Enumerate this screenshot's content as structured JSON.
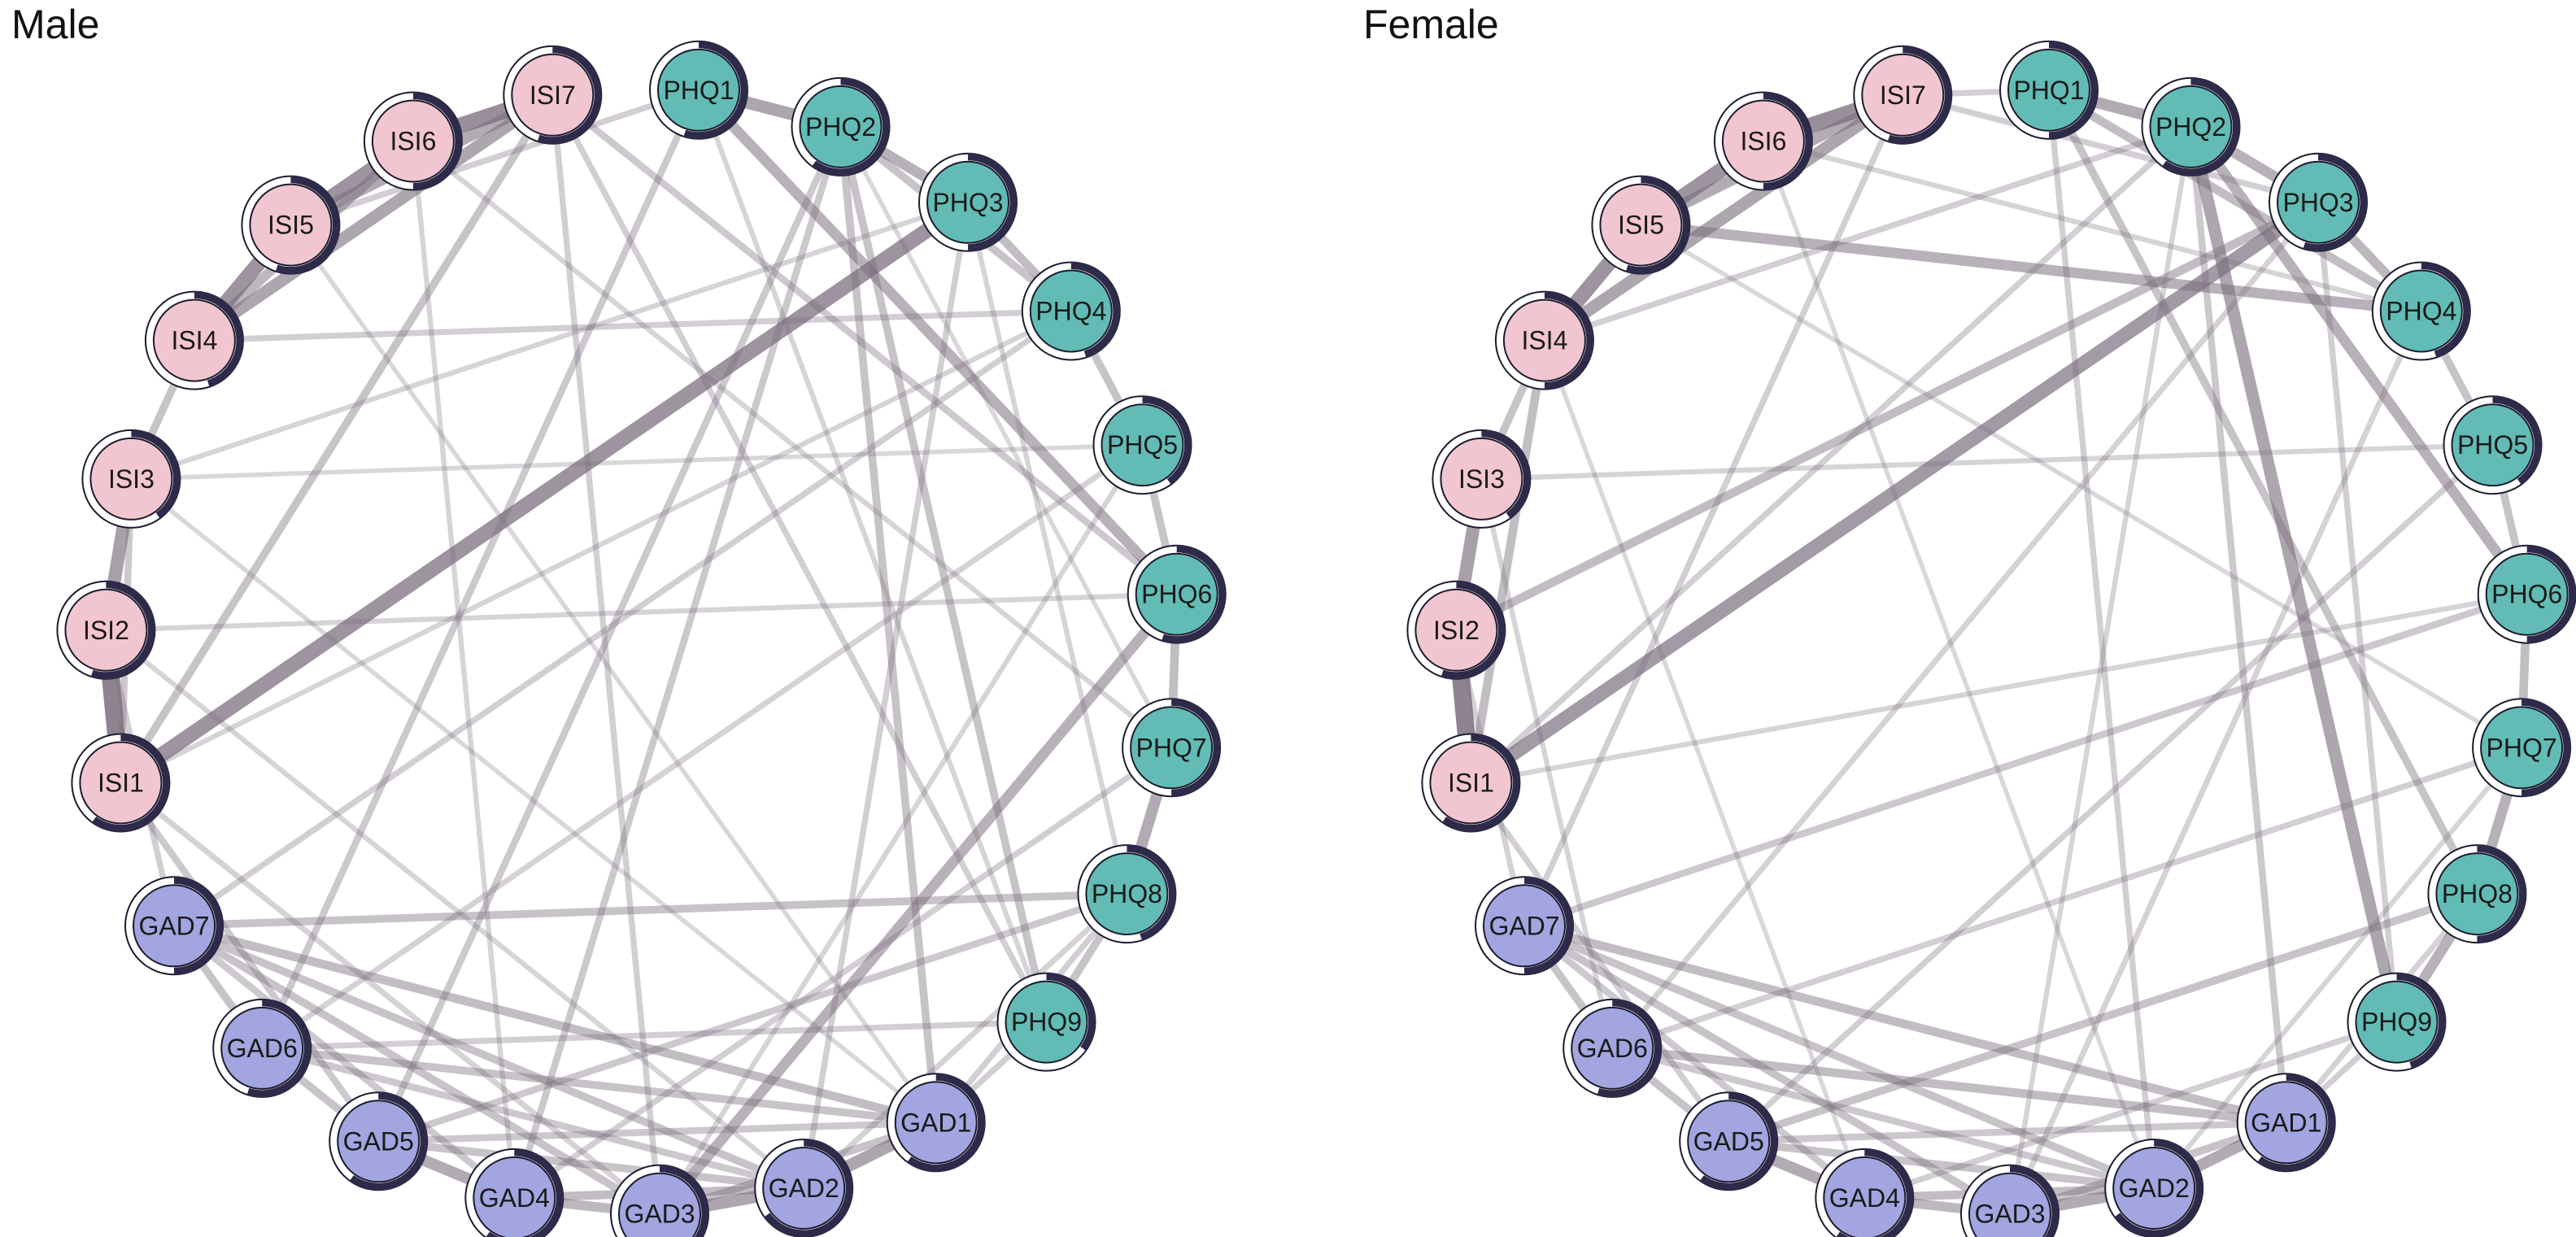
{
  "panels": [
    {
      "id": "male",
      "title": "Male",
      "nodes": [
        {
          "label": "PHQ1",
          "group": "PHQ"
        },
        {
          "label": "PHQ2",
          "group": "PHQ"
        },
        {
          "label": "PHQ3",
          "group": "PHQ"
        },
        {
          "label": "PHQ4",
          "group": "PHQ"
        },
        {
          "label": "PHQ5",
          "group": "PHQ"
        },
        {
          "label": "PHQ6",
          "group": "PHQ"
        },
        {
          "label": "PHQ7",
          "group": "PHQ"
        },
        {
          "label": "PHQ8",
          "group": "PHQ"
        },
        {
          "label": "PHQ9",
          "group": "PHQ"
        },
        {
          "label": "GAD1",
          "group": "GAD"
        },
        {
          "label": "GAD2",
          "group": "GAD"
        },
        {
          "label": "GAD3",
          "group": "GAD"
        },
        {
          "label": "GAD4",
          "group": "GAD"
        },
        {
          "label": "GAD5",
          "group": "GAD"
        },
        {
          "label": "GAD6",
          "group": "GAD"
        },
        {
          "label": "GAD7",
          "group": "GAD"
        },
        {
          "label": "ISI1",
          "group": "ISI"
        },
        {
          "label": "ISI2",
          "group": "ISI"
        },
        {
          "label": "ISI3",
          "group": "ISI"
        },
        {
          "label": "ISI4",
          "group": "ISI"
        },
        {
          "label": "ISI5",
          "group": "ISI"
        },
        {
          "label": "ISI6",
          "group": "ISI"
        },
        {
          "label": "ISI7",
          "group": "ISI"
        }
      ],
      "edges": [
        {
          "from": "ISI1",
          "to": "ISI2",
          "weight": 0.85
        },
        {
          "from": "ISI2",
          "to": "ISI3",
          "weight": 0.6
        },
        {
          "from": "ISI4",
          "to": "ISI5",
          "weight": 0.7
        },
        {
          "from": "ISI5",
          "to": "ISI6",
          "weight": 0.7
        },
        {
          "from": "ISI6",
          "to": "ISI7",
          "weight": 0.75
        },
        {
          "from": "ISI4",
          "to": "ISI7",
          "weight": 0.55
        },
        {
          "from": "ISI5",
          "to": "ISI7",
          "weight": 0.5
        },
        {
          "from": "ISI4",
          "to": "ISI6",
          "weight": 0.4
        },
        {
          "from": "ISI3",
          "to": "ISI4",
          "weight": 0.3
        },
        {
          "from": "ISI1",
          "to": "ISI3",
          "weight": 0.25
        },
        {
          "from": "ISI1",
          "to": "PHQ3",
          "weight": 0.7
        },
        {
          "from": "ISI1",
          "to": "ISI7",
          "weight": 0.3
        },
        {
          "from": "PHQ1",
          "to": "PHQ2",
          "weight": 0.55
        },
        {
          "from": "PHQ2",
          "to": "PHQ3",
          "weight": 0.45
        },
        {
          "from": "PHQ3",
          "to": "PHQ4",
          "weight": 0.35
        },
        {
          "from": "PHQ4",
          "to": "PHQ5",
          "weight": 0.3
        },
        {
          "from": "PHQ5",
          "to": "PHQ6",
          "weight": 0.3
        },
        {
          "from": "PHQ6",
          "to": "PHQ7",
          "weight": 0.35
        },
        {
          "from": "PHQ7",
          "to": "PHQ8",
          "weight": 0.5
        },
        {
          "from": "PHQ8",
          "to": "PHQ9",
          "weight": 0.3
        },
        {
          "from": "PHQ1",
          "to": "PHQ6",
          "weight": 0.45
        },
        {
          "from": "PHQ2",
          "to": "PHQ4",
          "weight": 0.3
        },
        {
          "from": "PHQ6",
          "to": "GAD3",
          "weight": 0.45
        },
        {
          "from": "PHQ2",
          "to": "GAD1",
          "weight": 0.3
        },
        {
          "from": "PHQ2",
          "to": "GAD5",
          "weight": 0.25
        },
        {
          "from": "PHQ2",
          "to": "GAD4",
          "weight": 0.25
        },
        {
          "from": "PHQ2",
          "to": "PHQ9",
          "weight": 0.3
        },
        {
          "from": "PHQ3",
          "to": "GAD2",
          "weight": 0.2
        },
        {
          "from": "PHQ1",
          "to": "GAD6",
          "weight": 0.25
        },
        {
          "from": "PHQ4",
          "to": "GAD7",
          "weight": 0.2
        },
        {
          "from": "PHQ8",
          "to": "GAD7",
          "weight": 0.3
        },
        {
          "from": "PHQ8",
          "to": "GAD5",
          "weight": 0.25
        },
        {
          "from": "PHQ9",
          "to": "GAD6",
          "weight": 0.2
        },
        {
          "from": "PHQ7",
          "to": "GAD4",
          "weight": 0.2
        },
        {
          "from": "PHQ5",
          "to": "GAD6",
          "weight": 0.18
        },
        {
          "from": "PHQ4",
          "to": "ISI4",
          "weight": 0.2
        },
        {
          "from": "PHQ1",
          "to": "ISI5",
          "weight": 0.2
        },
        {
          "from": "PHQ3",
          "to": "ISI3",
          "weight": 0.15
        },
        {
          "from": "PHQ6",
          "to": "ISI2",
          "weight": 0.15
        },
        {
          "from": "PHQ4",
          "to": "ISI1",
          "weight": 0.15
        },
        {
          "from": "PHQ7",
          "to": "ISI6",
          "weight": 0.15
        },
        {
          "from": "PHQ5",
          "to": "ISI3",
          "weight": 0.12
        },
        {
          "from": "ISI7",
          "to": "PHQ6",
          "weight": 0.25
        },
        {
          "from": "ISI7",
          "to": "GAD3",
          "weight": 0.2
        },
        {
          "from": "ISI7",
          "to": "PHQ9",
          "weight": 0.2
        },
        {
          "from": "ISI2",
          "to": "GAD7",
          "weight": 0.2
        },
        {
          "from": "ISI1",
          "to": "GAD5",
          "weight": 0.25
        },
        {
          "from": "ISI1",
          "to": "GAD3",
          "weight": 0.18
        },
        {
          "from": "ISI2",
          "to": "GAD2",
          "weight": 0.15
        },
        {
          "from": "ISI3",
          "to": "GAD1",
          "weight": 0.12
        },
        {
          "from": "ISI6",
          "to": "GAD4",
          "weight": 0.15
        },
        {
          "from": "ISI5",
          "to": "GAD1",
          "weight": 0.12
        },
        {
          "from": "GAD1",
          "to": "GAD2",
          "weight": 0.55
        },
        {
          "from": "GAD2",
          "to": "GAD3",
          "weight": 0.55
        },
        {
          "from": "GAD3",
          "to": "GAD4",
          "weight": 0.4
        },
        {
          "from": "GAD4",
          "to": "GAD5",
          "weight": 0.5
        },
        {
          "from": "GAD5",
          "to": "GAD6",
          "weight": 0.3
        },
        {
          "from": "GAD6",
          "to": "GAD7",
          "weight": 0.3
        },
        {
          "from": "GAD7",
          "to": "GAD1",
          "weight": 0.35
        },
        {
          "from": "GAD7",
          "to": "GAD2",
          "weight": 0.3
        },
        {
          "from": "GAD7",
          "to": "GAD3",
          "weight": 0.3
        },
        {
          "from": "GAD7",
          "to": "GAD4",
          "weight": 0.25
        },
        {
          "from": "GAD6",
          "to": "GAD1",
          "weight": 0.3
        },
        {
          "from": "GAD6",
          "to": "GAD2",
          "weight": 0.25
        },
        {
          "from": "GAD5",
          "to": "GAD2",
          "weight": 0.3
        },
        {
          "from": "GAD5",
          "to": "GAD1",
          "weight": 0.25
        },
        {
          "from": "GAD4",
          "to": "GAD2",
          "weight": 0.35
        },
        {
          "from": "GAD3",
          "to": "GAD1",
          "weight": 0.3
        },
        {
          "from": "GAD1",
          "to": "PHQ8",
          "weight": 0.2
        },
        {
          "from": "GAD2",
          "to": "PHQ8",
          "weight": 0.18
        },
        {
          "from": "GAD1",
          "to": "PHQ9",
          "weight": 0.2
        },
        {
          "from": "GAD3",
          "to": "PHQ5",
          "weight": 0.15
        },
        {
          "from": "PHQ1",
          "to": "PHQ9",
          "weight": 0.15
        },
        {
          "from": "PHQ3",
          "to": "PHQ8",
          "weight": 0.15
        },
        {
          "from": "PHQ2",
          "to": "PHQ7",
          "weight": 0.12
        }
      ]
    },
    {
      "id": "female",
      "title": "Female",
      "nodes": [
        {
          "label": "PHQ1",
          "group": "PHQ"
        },
        {
          "label": "PHQ2",
          "group": "PHQ"
        },
        {
          "label": "PHQ3",
          "group": "PHQ"
        },
        {
          "label": "PHQ4",
          "group": "PHQ"
        },
        {
          "label": "PHQ5",
          "group": "PHQ"
        },
        {
          "label": "PHQ6",
          "group": "PHQ"
        },
        {
          "label": "PHQ7",
          "group": "PHQ"
        },
        {
          "label": "PHQ8",
          "group": "PHQ"
        },
        {
          "label": "PHQ9",
          "group": "PHQ"
        },
        {
          "label": "GAD1",
          "group": "GAD"
        },
        {
          "label": "GAD2",
          "group": "GAD"
        },
        {
          "label": "GAD3",
          "group": "GAD"
        },
        {
          "label": "GAD4",
          "group": "GAD"
        },
        {
          "label": "GAD5",
          "group": "GAD"
        },
        {
          "label": "GAD6",
          "group": "GAD"
        },
        {
          "label": "GAD7",
          "group": "GAD"
        },
        {
          "label": "ISI1",
          "group": "ISI"
        },
        {
          "label": "ISI2",
          "group": "ISI"
        },
        {
          "label": "ISI3",
          "group": "ISI"
        },
        {
          "label": "ISI4",
          "group": "ISI"
        },
        {
          "label": "ISI5",
          "group": "ISI"
        },
        {
          "label": "ISI6",
          "group": "ISI"
        },
        {
          "label": "ISI7",
          "group": "ISI"
        }
      ],
      "edges": [
        {
          "from": "ISI1",
          "to": "ISI2",
          "weight": 0.85
        },
        {
          "from": "ISI2",
          "to": "ISI3",
          "weight": 0.6
        },
        {
          "from": "ISI4",
          "to": "ISI5",
          "weight": 0.7
        },
        {
          "from": "ISI5",
          "to": "ISI6",
          "weight": 0.7
        },
        {
          "from": "ISI6",
          "to": "ISI7",
          "weight": 0.75
        },
        {
          "from": "ISI4",
          "to": "ISI7",
          "weight": 0.55
        },
        {
          "from": "ISI5",
          "to": "ISI7",
          "weight": 0.5
        },
        {
          "from": "ISI3",
          "to": "ISI4",
          "weight": 0.3
        },
        {
          "from": "ISI1",
          "to": "ISI4",
          "weight": 0.35
        },
        {
          "from": "ISI1",
          "to": "PHQ3",
          "weight": 0.65
        },
        {
          "from": "ISI5",
          "to": "PHQ4",
          "weight": 0.45
        },
        {
          "from": "ISI7",
          "to": "PHQ1",
          "weight": 0.2
        },
        {
          "from": "PHQ1",
          "to": "PHQ2",
          "weight": 0.5
        },
        {
          "from": "PHQ2",
          "to": "PHQ3",
          "weight": 0.45
        },
        {
          "from": "PHQ3",
          "to": "PHQ4",
          "weight": 0.4
        },
        {
          "from": "PHQ4",
          "to": "PHQ5",
          "weight": 0.3
        },
        {
          "from": "PHQ5",
          "to": "PHQ6",
          "weight": 0.3
        },
        {
          "from": "PHQ6",
          "to": "PHQ7",
          "weight": 0.35
        },
        {
          "from": "PHQ7",
          "to": "PHQ8",
          "weight": 0.45
        },
        {
          "from": "PHQ8",
          "to": "PHQ9",
          "weight": 0.45
        },
        {
          "from": "PHQ2",
          "to": "PHQ9",
          "weight": 0.55
        },
        {
          "from": "PHQ2",
          "to": "PHQ6",
          "weight": 0.45
        },
        {
          "from": "PHQ1",
          "to": "PHQ4",
          "weight": 0.35
        },
        {
          "from": "PHQ1",
          "to": "PHQ8",
          "weight": 0.3
        },
        {
          "from": "PHQ3",
          "to": "ISI2",
          "weight": 0.35
        },
        {
          "from": "PHQ3",
          "to": "PHQ9",
          "weight": 0.2
        },
        {
          "from": "PHQ2",
          "to": "GAD1",
          "weight": 0.25
        },
        {
          "from": "PHQ1",
          "to": "GAD2",
          "weight": 0.2
        },
        {
          "from": "PHQ2",
          "to": "ISI4",
          "weight": 0.2
        },
        {
          "from": "PHQ2",
          "to": "ISI1",
          "weight": 0.2
        },
        {
          "from": "PHQ6",
          "to": "GAD7",
          "weight": 0.25
        },
        {
          "from": "PHQ7",
          "to": "GAD6",
          "weight": 0.2
        },
        {
          "from": "PHQ8",
          "to": "GAD5",
          "weight": 0.3
        },
        {
          "from": "PHQ9",
          "to": "GAD4",
          "weight": 0.2
        },
        {
          "from": "PHQ4",
          "to": "GAD3",
          "weight": 0.18
        },
        {
          "from": "PHQ5",
          "to": "GAD5",
          "weight": 0.2
        },
        {
          "from": "PHQ3",
          "to": "GAD6",
          "weight": 0.18
        },
        {
          "from": "PHQ4",
          "to": "ISI6",
          "weight": 0.15
        },
        {
          "from": "PHQ5",
          "to": "ISI3",
          "weight": 0.15
        },
        {
          "from": "PHQ6",
          "to": "ISI1",
          "weight": 0.15
        },
        {
          "from": "PHQ7",
          "to": "ISI5",
          "weight": 0.12
        },
        {
          "from": "ISI7",
          "to": "GAD7",
          "weight": 0.2
        },
        {
          "from": "ISI7",
          "to": "PHQ3",
          "weight": 0.2
        },
        {
          "from": "ISI1",
          "to": "GAD5",
          "weight": 0.2
        },
        {
          "from": "ISI2",
          "to": "GAD7",
          "weight": 0.18
        },
        {
          "from": "ISI3",
          "to": "GAD6",
          "weight": 0.15
        },
        {
          "from": "ISI4",
          "to": "GAD4",
          "weight": 0.12
        },
        {
          "from": "ISI6",
          "to": "GAD2",
          "weight": 0.12
        },
        {
          "from": "GAD1",
          "to": "GAD2",
          "weight": 0.5
        },
        {
          "from": "GAD2",
          "to": "GAD3",
          "weight": 0.5
        },
        {
          "from": "GAD3",
          "to": "GAD4",
          "weight": 0.4
        },
        {
          "from": "GAD4",
          "to": "GAD5",
          "weight": 0.5
        },
        {
          "from": "GAD5",
          "to": "GAD6",
          "weight": 0.3
        },
        {
          "from": "GAD6",
          "to": "GAD7",
          "weight": 0.3
        },
        {
          "from": "GAD7",
          "to": "GAD1",
          "weight": 0.35
        },
        {
          "from": "GAD7",
          "to": "GAD2",
          "weight": 0.3
        },
        {
          "from": "GAD7",
          "to": "GAD3",
          "weight": 0.3
        },
        {
          "from": "GAD7",
          "to": "GAD4",
          "weight": 0.25
        },
        {
          "from": "GAD6",
          "to": "GAD1",
          "weight": 0.35
        },
        {
          "from": "GAD6",
          "to": "GAD2",
          "weight": 0.25
        },
        {
          "from": "GAD5",
          "to": "GAD2",
          "weight": 0.3
        },
        {
          "from": "GAD5",
          "to": "GAD1",
          "weight": 0.25
        },
        {
          "from": "GAD4",
          "to": "GAD2",
          "weight": 0.35
        },
        {
          "from": "GAD3",
          "to": "GAD1",
          "weight": 0.3
        },
        {
          "from": "GAD1",
          "to": "PHQ9",
          "weight": 0.2
        },
        {
          "from": "GAD1",
          "to": "PHQ8",
          "weight": 0.18
        },
        {
          "from": "GAD2",
          "to": "PHQ7",
          "weight": 0.15
        },
        {
          "from": "GAD3",
          "to": "PHQ2",
          "weight": 0.15
        }
      ]
    }
  ],
  "groups": {
    "PHQ": {
      "fill": "#62bcb5"
    },
    "GAD": {
      "fill": "#a3a5e0"
    },
    "ISI": {
      "fill": "#f2c6d0"
    }
  },
  "colors": {
    "edge": "#7b6f7d",
    "ring_outline": "#1c1c2e",
    "ring_white": "#ffffff",
    "ring_fill": "#2d2a4a"
  },
  "predictability": {
    "male": {
      "PHQ1": 0.55,
      "PHQ2": 0.6,
      "PHQ3": 0.5,
      "PHQ4": 0.45,
      "PHQ5": 0.4,
      "PHQ6": 0.55,
      "PHQ7": 0.5,
      "PHQ8": 0.45,
      "PHQ9": 0.35,
      "GAD1": 0.6,
      "GAD2": 0.65,
      "GAD3": 0.65,
      "GAD4": 0.6,
      "GAD5": 0.6,
      "GAD6": 0.55,
      "GAD7": 0.5,
      "ISI1": 0.6,
      "ISI2": 0.55,
      "ISI3": 0.4,
      "ISI4": 0.45,
      "ISI5": 0.55,
      "ISI6": 0.5,
      "ISI7": 0.55
    },
    "female": {
      "PHQ1": 0.5,
      "PHQ2": 0.6,
      "PHQ3": 0.55,
      "PHQ4": 0.45,
      "PHQ5": 0.4,
      "PHQ6": 0.5,
      "PHQ7": 0.5,
      "PHQ8": 0.5,
      "PHQ9": 0.45,
      "GAD1": 0.6,
      "GAD2": 0.65,
      "GAD3": 0.65,
      "GAD4": 0.6,
      "GAD5": 0.6,
      "GAD6": 0.55,
      "GAD7": 0.5,
      "ISI1": 0.6,
      "ISI2": 0.55,
      "ISI3": 0.4,
      "ISI4": 0.5,
      "ISI5": 0.55,
      "ISI6": 0.5,
      "ISI7": 0.55
    }
  }
}
